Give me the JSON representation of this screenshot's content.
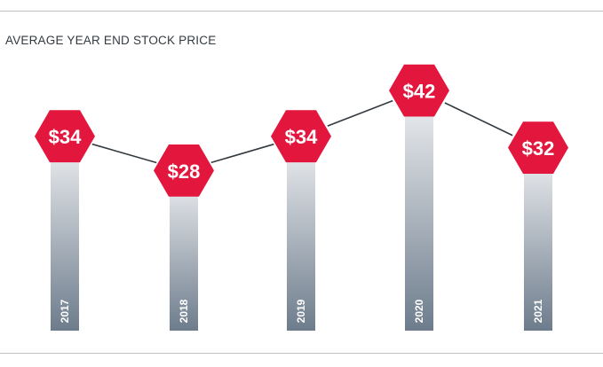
{
  "title": "AVERAGE YEAR END STOCK PRICE",
  "colors": {
    "hexagon": "#e3173e",
    "line": "#333a40",
    "bar_top": "#f1f2f4",
    "bar_bottom": "#6d7c8c",
    "value_text": "#ffffff",
    "year_text": "#ffffff"
  },
  "chart_data": {
    "type": "bar",
    "title": "AVERAGE YEAR END STOCK PRICE",
    "categories": [
      "2017",
      "2018",
      "2019",
      "2020",
      "2021"
    ],
    "values": [
      34,
      28,
      34,
      42,
      32
    ],
    "value_labels": [
      "$34",
      "$28",
      "$34",
      "$42",
      "$32"
    ],
    "xlabel": "",
    "ylabel": "",
    "ylim": [
      0,
      48
    ],
    "grid": false,
    "overlay": "line connecting hexagon value markers"
  }
}
